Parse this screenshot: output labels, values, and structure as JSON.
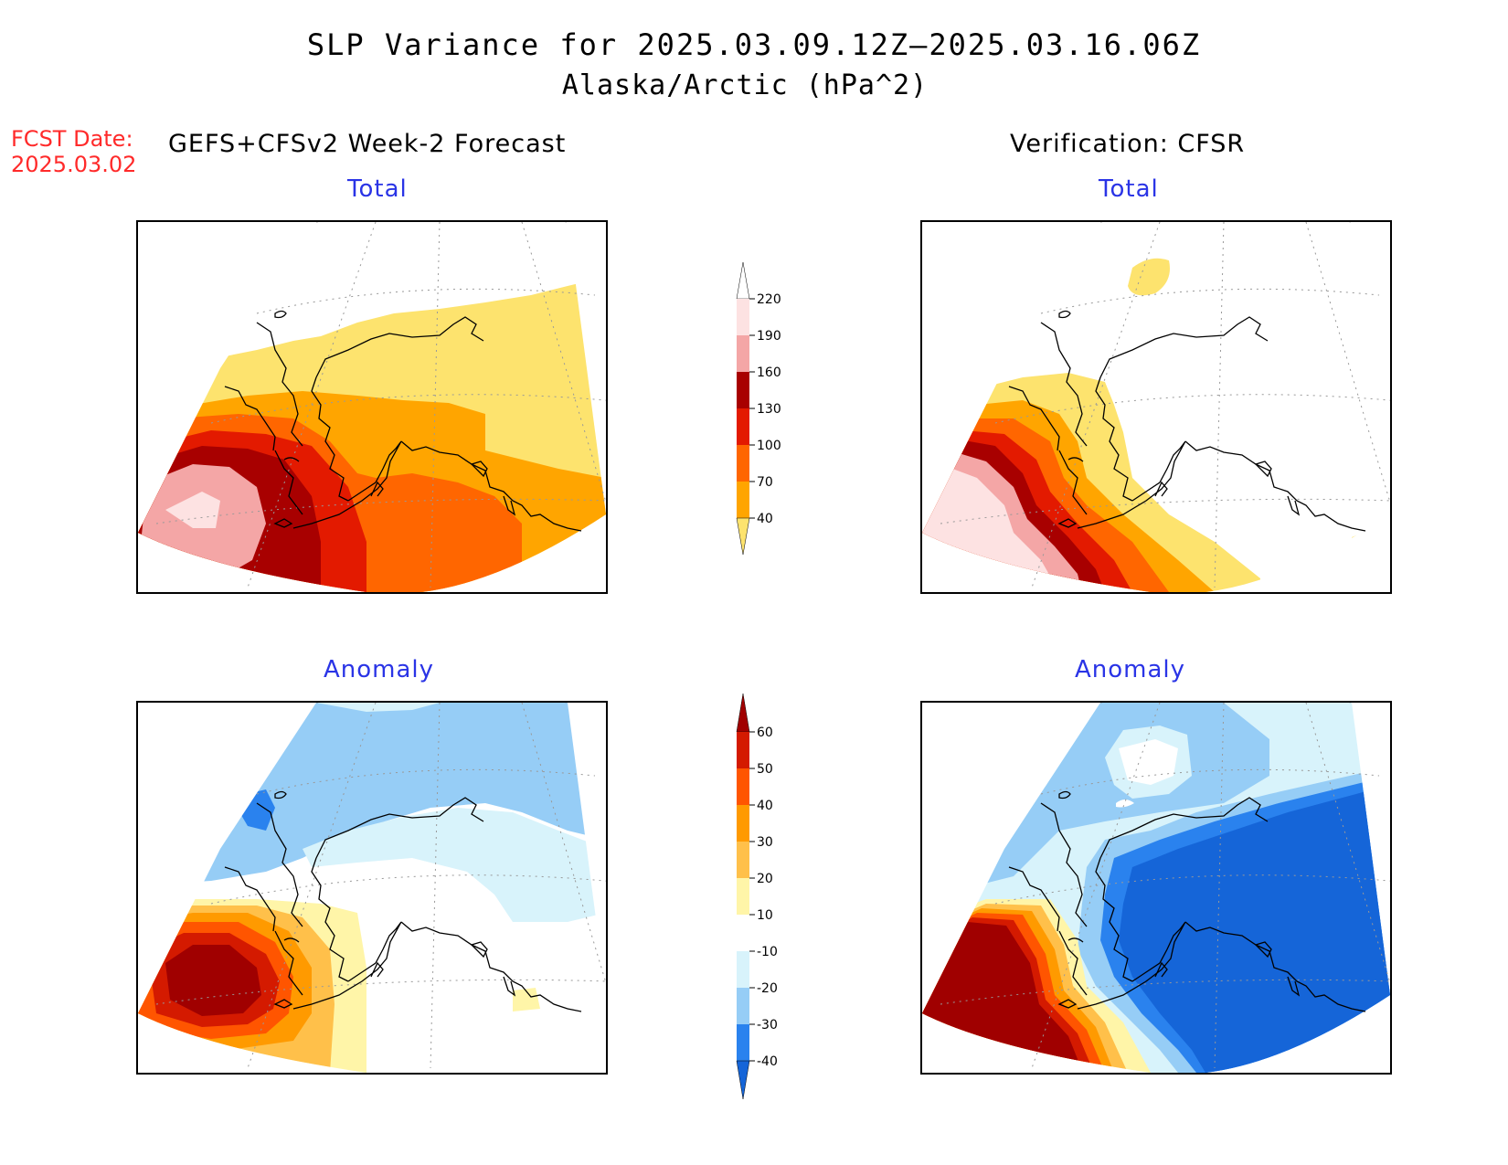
{
  "title": "SLP Variance for 2025.03.09.12Z–2025.03.16.06Z",
  "subtitle": "Alaska/Arctic (hPa^2)",
  "fcst_label": "FCST Date:",
  "fcst_date": "2025.03.02",
  "left_header": "GEFS+CFSv2 Week-2 Forecast",
  "right_header": "Verification: CFSR",
  "panels": {
    "top_left_title": "Total",
    "top_right_title": "Total",
    "bottom_left_title": "Anomaly",
    "bottom_right_title": "Anomaly"
  },
  "colorbars": {
    "total": {
      "levels": [
        "40",
        "70",
        "100",
        "130",
        "160",
        "190",
        "220"
      ],
      "colors": [
        "#fde36e",
        "#ffa500",
        "#ff6600",
        "#e31a00",
        "#a80000",
        "#f4a6a6",
        "#fde2e2"
      ]
    },
    "anomaly": {
      "levels": [
        "-40",
        "-30",
        "-20",
        "-10",
        "10",
        "20",
        "30",
        "40",
        "50",
        "60"
      ],
      "colors": [
        "#1565d8",
        "#2a82ee",
        "#96cdf6",
        "#d8f3fb",
        "#ffffff",
        "#fff5a8",
        "#ffc04a",
        "#ff9a00",
        "#ff5500",
        "#d41a00",
        "#a00000"
      ]
    }
  }
}
